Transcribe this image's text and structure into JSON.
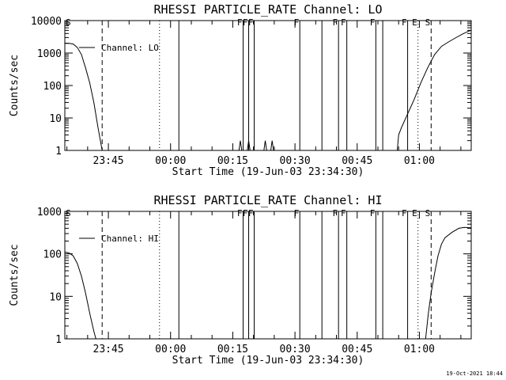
{
  "footer": {
    "timestamp": "19-Oct-2021 18:44"
  },
  "chart_data": [
    {
      "type": "line",
      "title": "RHESSI PARTICLE_RATE Channel: LO",
      "xlabel": "Start Time (19-Jun-03 23:34:30)",
      "ylabel": "Counts/sec",
      "yscale": "log",
      "xlim": [
        0,
        5880
      ],
      "ylim": [
        1,
        10000
      ],
      "xticks": [
        {
          "t": 630,
          "label": "23:45"
        },
        {
          "t": 1530,
          "label": "00:00"
        },
        {
          "t": 2430,
          "label": "00:15"
        },
        {
          "t": 3330,
          "label": "00:30"
        },
        {
          "t": 4230,
          "label": "00:45"
        },
        {
          "t": 5130,
          "label": "01:00"
        }
      ],
      "yticks": [
        {
          "v": 1,
          "label": "1"
        },
        {
          "v": 10,
          "label": "10"
        },
        {
          "v": 100,
          "label": "100"
        },
        {
          "v": 1000,
          "label": "1000"
        },
        {
          "v": 10000,
          "label": "10000"
        }
      ],
      "legend": {
        "label": "Channel: LO",
        "position": "top-left"
      },
      "series": [
        {
          "name": "Channel: LO",
          "color": "#000000",
          "points": [
            [
              0,
              2000
            ],
            [
              60,
              2000
            ],
            [
              120,
              1900
            ],
            [
              180,
              1500
            ],
            [
              240,
              900
            ],
            [
              300,
              350
            ],
            [
              360,
              120
            ],
            [
              420,
              30
            ],
            [
              480,
              5
            ],
            [
              540,
              1
            ],
            [
              2520,
              1
            ],
            [
              2540,
              2
            ],
            [
              2560,
              1
            ],
            [
              2640,
              1
            ],
            [
              2660,
              2
            ],
            [
              2680,
              1
            ],
            [
              2880,
              1
            ],
            [
              2900,
              2
            ],
            [
              2920,
              1
            ],
            [
              2980,
              1
            ],
            [
              3000,
              2
            ],
            [
              3020,
              1
            ],
            [
              4810,
              1
            ],
            [
              4830,
              3
            ],
            [
              4870,
              5
            ],
            [
              4950,
              12
            ],
            [
              5050,
              35
            ],
            [
              5150,
              120
            ],
            [
              5250,
              350
            ],
            [
              5350,
              900
            ],
            [
              5450,
              1600
            ],
            [
              5550,
              2200
            ],
            [
              5650,
              2900
            ],
            [
              5750,
              3800
            ],
            [
              5850,
              4800
            ],
            [
              5880,
              5000
            ]
          ]
        }
      ],
      "events": [
        {
          "t": 540,
          "style": "dashed",
          "label": ""
        },
        {
          "t": 1370,
          "style": "dotted",
          "label": ""
        },
        {
          "t": 1650,
          "style": "solid",
          "label": ""
        },
        {
          "t": 2580,
          "style": "solid",
          "label": "F"
        },
        {
          "t": 2660,
          "style": "solid",
          "label": "F"
        },
        {
          "t": 2740,
          "style": "solid",
          "label": "F"
        },
        {
          "t": 3400,
          "style": "solid",
          "label": "F"
        },
        {
          "t": 3720,
          "style": "solid",
          "label": ""
        },
        {
          "t": 3960,
          "style": "solid",
          "label": "F"
        },
        {
          "t": 4080,
          "style": "solid",
          "label": "F"
        },
        {
          "t": 4500,
          "style": "solid",
          "label": "F"
        },
        {
          "t": 4600,
          "style": "solid",
          "label": ""
        },
        {
          "t": 4960,
          "style": "solid",
          "label": "F"
        },
        {
          "t": 5110,
          "style": "dotted",
          "label": "E"
        },
        {
          "t": 5300,
          "style": "dashed",
          "label": "S"
        },
        {
          "t": 5880,
          "style": "dashdot",
          "label": ""
        }
      ],
      "flag_s_left": "S"
    },
    {
      "type": "line",
      "title": "RHESSI PARTICLE_RATE Channel: HI",
      "xlabel": "Start Time (19-Jun-03 23:34:30)",
      "ylabel": "Counts/sec",
      "yscale": "log",
      "xlim": [
        0,
        5880
      ],
      "ylim": [
        1,
        1000
      ],
      "xticks": [
        {
          "t": 630,
          "label": "23:45"
        },
        {
          "t": 1530,
          "label": "00:00"
        },
        {
          "t": 2430,
          "label": "00:15"
        },
        {
          "t": 3330,
          "label": "00:30"
        },
        {
          "t": 4230,
          "label": "00:45"
        },
        {
          "t": 5130,
          "label": "01:00"
        }
      ],
      "yticks": [
        {
          "v": 1,
          "label": "1"
        },
        {
          "v": 10,
          "label": "10"
        },
        {
          "v": 100,
          "label": "100"
        },
        {
          "v": 1000,
          "label": "1000"
        }
      ],
      "legend": {
        "label": "Channel: HI",
        "position": "top-left"
      },
      "series": [
        {
          "name": "Channel: HI",
          "color": "#000000",
          "points": [
            [
              0,
              110
            ],
            [
              60,
              105
            ],
            [
              120,
              90
            ],
            [
              180,
              60
            ],
            [
              240,
              30
            ],
            [
              300,
              12
            ],
            [
              360,
              4
            ],
            [
              420,
              1.5
            ],
            [
              450,
              1
            ],
            [
              5220,
              1
            ],
            [
              5260,
              4
            ],
            [
              5300,
              12
            ],
            [
              5350,
              35
            ],
            [
              5400,
              90
            ],
            [
              5450,
              170
            ],
            [
              5500,
              240
            ],
            [
              5600,
              320
            ],
            [
              5700,
              400
            ],
            [
              5780,
              420
            ],
            [
              5880,
              410
            ]
          ]
        }
      ],
      "events": [
        {
          "t": 540,
          "style": "dashed",
          "label": ""
        },
        {
          "t": 1370,
          "style": "dotted",
          "label": ""
        },
        {
          "t": 1650,
          "style": "solid",
          "label": ""
        },
        {
          "t": 2580,
          "style": "solid",
          "label": "F"
        },
        {
          "t": 2660,
          "style": "solid",
          "label": "F"
        },
        {
          "t": 2740,
          "style": "solid",
          "label": "F"
        },
        {
          "t": 3400,
          "style": "solid",
          "label": "F"
        },
        {
          "t": 3720,
          "style": "solid",
          "label": ""
        },
        {
          "t": 3960,
          "style": "solid",
          "label": "F"
        },
        {
          "t": 4080,
          "style": "solid",
          "label": "F"
        },
        {
          "t": 4500,
          "style": "solid",
          "label": "F"
        },
        {
          "t": 4600,
          "style": "solid",
          "label": ""
        },
        {
          "t": 4960,
          "style": "solid",
          "label": "F"
        },
        {
          "t": 5110,
          "style": "dotted",
          "label": "E"
        },
        {
          "t": 5300,
          "style": "dashed",
          "label": "S"
        },
        {
          "t": 5880,
          "style": "dashdot",
          "label": ""
        }
      ],
      "flag_s_left": "S"
    }
  ]
}
